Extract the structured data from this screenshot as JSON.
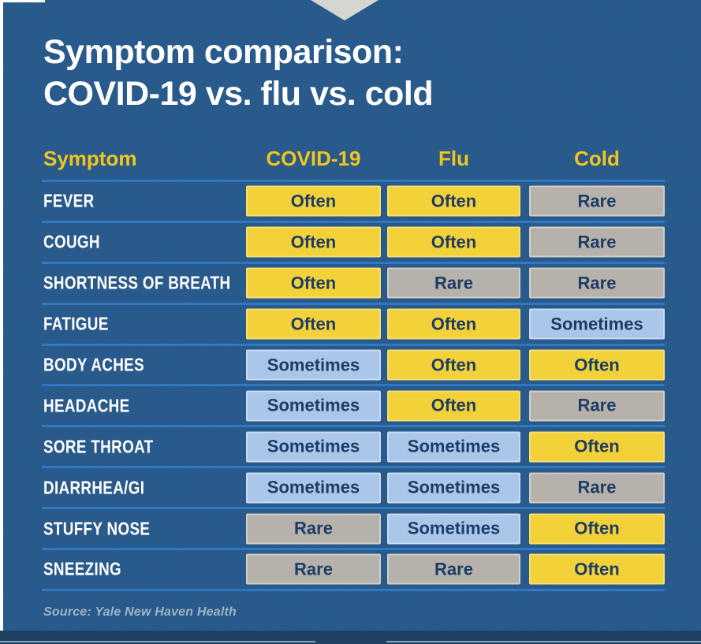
{
  "page": {
    "title_line1": "Symptom comparison:",
    "title_line2": "COVID-19 vs. flu vs. cold",
    "source": "Source: Yale New Haven Health"
  },
  "table": {
    "headers": [
      "Symptom",
      "COVID-19",
      "Flu",
      "Cold"
    ],
    "rows": [
      {
        "symptom": "FEVER",
        "values": [
          "Often",
          "Often",
          "Rare"
        ]
      },
      {
        "symptom": "COUGH",
        "values": [
          "Often",
          "Often",
          "Rare"
        ]
      },
      {
        "symptom": "SHORTNESS OF BREATH",
        "values": [
          "Often",
          "Rare",
          "Rare"
        ]
      },
      {
        "symptom": "FATIGUE",
        "values": [
          "Often",
          "Often",
          "Sometimes"
        ]
      },
      {
        "symptom": "BODY ACHES",
        "values": [
          "Sometimes",
          "Often",
          "Often"
        ]
      },
      {
        "symptom": "HEADACHE",
        "values": [
          "Sometimes",
          "Often",
          "Rare"
        ]
      },
      {
        "symptom": "SORE THROAT",
        "values": [
          "Sometimes",
          "Sometimes",
          "Often"
        ]
      },
      {
        "symptom": "DIARRHEA/GI",
        "values": [
          "Sometimes",
          "Sometimes",
          "Rare"
        ]
      },
      {
        "symptom": "STUFFY NOSE",
        "values": [
          "Rare",
          "Sometimes",
          "Often"
        ]
      },
      {
        "symptom": "SNEEZING",
        "values": [
          "Rare",
          "Rare",
          "Often"
        ]
      }
    ]
  },
  "colors": {
    "panel_background": "#2a5b8d",
    "footer_bar": "#1e4063",
    "separator_line": "#3178c2",
    "header_yellow": "#f2c51d",
    "pill_often": "#f3d139",
    "pill_sometimes": "#aac7ea",
    "pill_rare": "#b6b2ab",
    "pill_text": "#1e3c64",
    "chevron_gray": "#d5d6d2"
  },
  "chart_data": {
    "type": "table",
    "title": "Symptom comparison: COVID-19 vs. flu vs. cold",
    "columns": [
      "Symptom",
      "COVID-19",
      "Flu",
      "Cold"
    ],
    "value_scale": [
      "Often",
      "Sometimes",
      "Rare"
    ],
    "rows": [
      [
        "FEVER",
        "Often",
        "Often",
        "Rare"
      ],
      [
        "COUGH",
        "Often",
        "Often",
        "Rare"
      ],
      [
        "SHORTNESS OF BREATH",
        "Often",
        "Rare",
        "Rare"
      ],
      [
        "FATIGUE",
        "Often",
        "Often",
        "Sometimes"
      ],
      [
        "BODY ACHES",
        "Sometimes",
        "Often",
        "Often"
      ],
      [
        "HEADACHE",
        "Sometimes",
        "Often",
        "Rare"
      ],
      [
        "SORE THROAT",
        "Sometimes",
        "Sometimes",
        "Often"
      ],
      [
        "DIARRHEA/GI",
        "Sometimes",
        "Sometimes",
        "Rare"
      ],
      [
        "STUFFY NOSE",
        "Rare",
        "Sometimes",
        "Often"
      ],
      [
        "SNEEZING",
        "Rare",
        "Rare",
        "Often"
      ]
    ],
    "annotations": [
      "Source: Yale New Haven Health"
    ]
  }
}
